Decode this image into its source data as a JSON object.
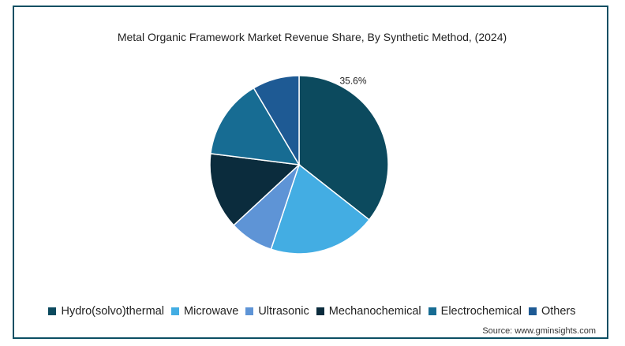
{
  "chart_data": {
    "type": "pie",
    "title": "Metal Organic Framework Market Revenue Share, By Synthetic Method, (2024)",
    "slices": [
      {
        "name": "Hydro(solvo)thermal",
        "value": 35.6,
        "color": "#0c4a5e",
        "label": "35.6%"
      },
      {
        "name": "Microwave",
        "value": 19.5,
        "color": "#43ade3",
        "label": ""
      },
      {
        "name": "Ultrasonic",
        "value": 8.0,
        "color": "#5e94d6",
        "label": ""
      },
      {
        "name": "Mechanochemical",
        "value": 13.9,
        "color": "#0b2c3d",
        "label": ""
      },
      {
        "name": "Electrochemical",
        "value": 14.5,
        "color": "#176c93",
        "label": ""
      },
      {
        "name": "Others",
        "value": 8.5,
        "color": "#1e5a94",
        "label": ""
      }
    ],
    "legend_position": "bottom",
    "source": "Source: www.gminsights.com"
  }
}
